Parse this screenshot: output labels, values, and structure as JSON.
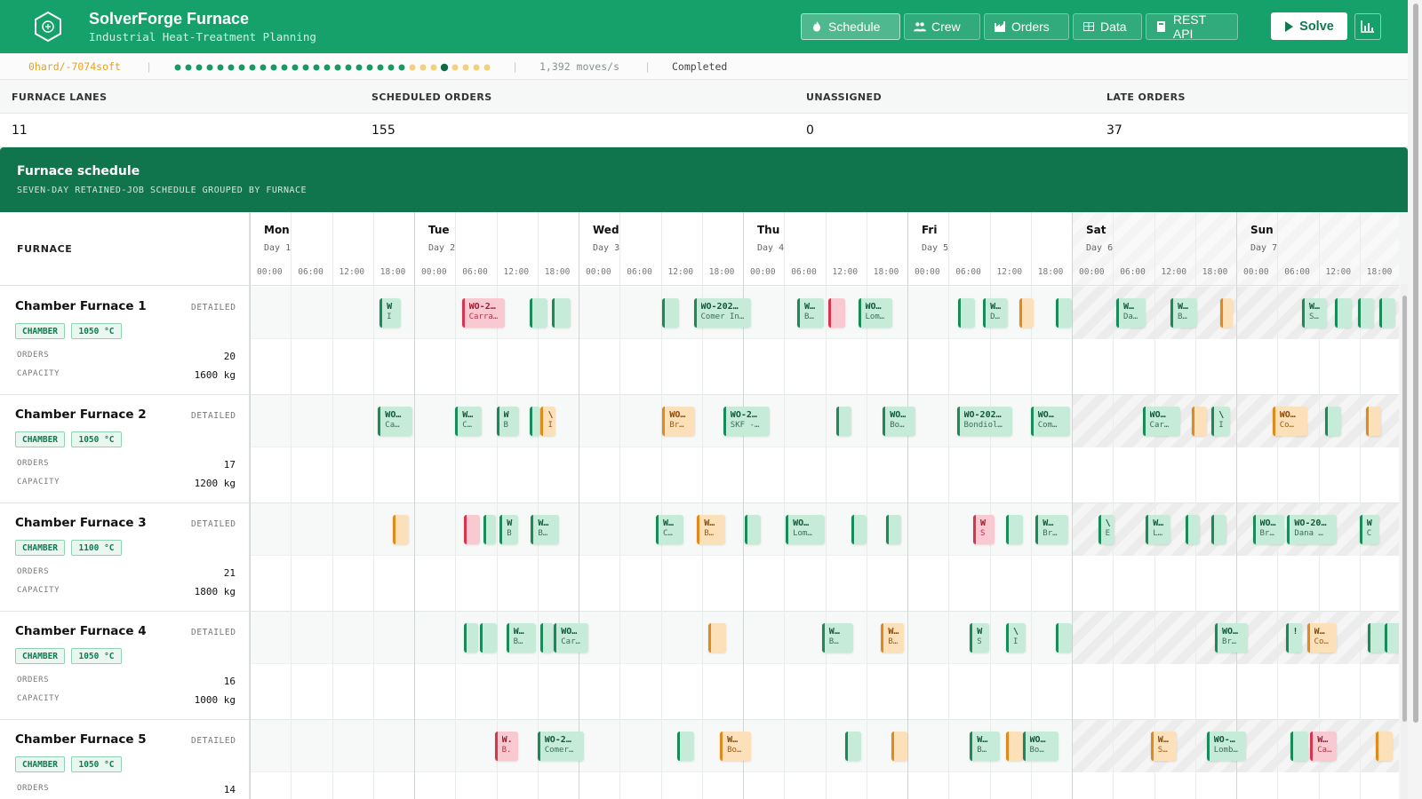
{
  "header": {
    "title": "SolverForge Furnace",
    "subtitle": "Industrial Heat-Treatment Planning",
    "nav": [
      {
        "label": "Schedule",
        "icon": "flame-icon",
        "active": true
      },
      {
        "label": "Crew",
        "icon": "users-icon",
        "active": false
      },
      {
        "label": "Orders",
        "icon": "factory-icon",
        "active": false
      },
      {
        "label": "Data",
        "icon": "table-icon",
        "active": false
      },
      {
        "label": "REST API",
        "icon": "book-icon",
        "active": false
      }
    ],
    "solve_label": "Solve"
  },
  "status": {
    "score": "0hard/-7074soft",
    "progress_dots": {
      "total": 30,
      "filled": 28,
      "highlighted_index": 25
    },
    "speed": "1,392 moves/s",
    "state": "Completed"
  },
  "stats": [
    {
      "label": "FURNACE LANES",
      "value": "11"
    },
    {
      "label": "SCHEDULED ORDERS",
      "value": "155"
    },
    {
      "label": "UNASSIGNED",
      "value": "0"
    },
    {
      "label": "LATE ORDERS",
      "value": "37"
    }
  ],
  "schedule": {
    "title": "Furnace schedule",
    "subtitle": "SEVEN-DAY RETAINED-JOB SCHEDULE GROUPED BY FURNACE",
    "column_label": "FURNACE",
    "days": [
      {
        "name": "Mon",
        "sub": "Day 1"
      },
      {
        "name": "Tue",
        "sub": "Day 2"
      },
      {
        "name": "Wed",
        "sub": "Day 3"
      },
      {
        "name": "Thu",
        "sub": "Day 4"
      },
      {
        "name": "Fri",
        "sub": "Day 5"
      },
      {
        "name": "Sat",
        "sub": "Day 6"
      },
      {
        "name": "Sun",
        "sub": "Day 7"
      }
    ],
    "hours": [
      "00:00",
      "06:00",
      "12:00",
      "18:00"
    ],
    "detail_label": "DETAILED",
    "orders_label": "ORDERS",
    "capacity_label": "CAPACITY",
    "furnaces": [
      {
        "name": "Chamber Furnace 1",
        "type": "CHAMBER",
        "temp": "1050 °C",
        "orders": "20",
        "capacity": "1600 kg",
        "jobs": [
          {
            "start": 0.79,
            "end": 0.92,
            "status": "ok",
            "t1": "W",
            "t2": "I"
          },
          {
            "start": 1.29,
            "end": 1.55,
            "status": "late",
            "t1": "WO-2…",
            "t2": "Carra…"
          },
          {
            "start": 1.7,
            "end": 1.81,
            "status": "ok",
            "t1": "",
            "t2": ""
          },
          {
            "start": 1.84,
            "end": 1.95,
            "status": "ok",
            "t1": "",
            "t2": ""
          },
          {
            "start": 2.51,
            "end": 2.61,
            "status": "ok",
            "t1": "",
            "t2": ""
          },
          {
            "start": 2.7,
            "end": 3.05,
            "status": "ok",
            "t1": "WO-202…",
            "t2": "Comer In…"
          },
          {
            "start": 3.33,
            "end": 3.49,
            "status": "ok",
            "t1": "W…",
            "t2": "B…"
          },
          {
            "start": 3.52,
            "end": 3.62,
            "status": "late",
            "t1": "",
            "t2": ""
          },
          {
            "start": 3.7,
            "end": 3.91,
            "status": "ok",
            "t1": "WO…",
            "t2": "Lom…"
          },
          {
            "start": 4.31,
            "end": 4.41,
            "status": "ok",
            "t1": "",
            "t2": ""
          },
          {
            "start": 4.46,
            "end": 4.61,
            "status": "ok",
            "t1": "W…",
            "t2": "D…"
          },
          {
            "start": 4.68,
            "end": 4.77,
            "status": "warn",
            "t1": "",
            "t2": ""
          },
          {
            "start": 4.9,
            "end": 5.0,
            "status": "ok",
            "t1": "",
            "t2": ""
          },
          {
            "start": 5.27,
            "end": 5.45,
            "status": "ok",
            "t1": "W…",
            "t2": "Da…"
          },
          {
            "start": 5.6,
            "end": 5.76,
            "status": "ok",
            "t1": "W…",
            "t2": "B…"
          },
          {
            "start": 5.9,
            "end": 5.98,
            "status": "warn",
            "t1": "",
            "t2": ""
          },
          {
            "start": 6.4,
            "end": 6.55,
            "status": "ok",
            "t1": "W…",
            "t2": "S…"
          },
          {
            "start": 6.6,
            "end": 6.7,
            "status": "ok",
            "t1": "",
            "t2": ""
          },
          {
            "start": 6.74,
            "end": 6.84,
            "status": "ok",
            "t1": "",
            "t2": ""
          },
          {
            "start": 6.87,
            "end": 6.97,
            "status": "ok",
            "t1": "",
            "t2": ""
          }
        ]
      },
      {
        "name": "Chamber Furnace 2",
        "type": "CHAMBER",
        "temp": "1050 °C",
        "orders": "17",
        "capacity": "1200 kg",
        "jobs": [
          {
            "start": 0.78,
            "end": 0.99,
            "status": "ok",
            "t1": "WO…",
            "t2": "Ca…"
          },
          {
            "start": 1.25,
            "end": 1.41,
            "status": "ok",
            "t1": "W…",
            "t2": "C…"
          },
          {
            "start": 1.5,
            "end": 1.64,
            "status": "ok",
            "t1": "W",
            "t2": "B"
          },
          {
            "start": 1.7,
            "end": 1.77,
            "status": "ok",
            "t1": "",
            "t2": ""
          },
          {
            "start": 1.77,
            "end": 1.86,
            "status": "warn",
            "t1": "\\",
            "t2": "I"
          },
          {
            "start": 2.51,
            "end": 2.71,
            "status": "warn",
            "t1": "WO…",
            "t2": "Br…"
          },
          {
            "start": 2.88,
            "end": 3.16,
            "status": "ok",
            "t1": "WO-2…",
            "t2": "SKF -…"
          },
          {
            "start": 3.57,
            "end": 3.66,
            "status": "ok",
            "t1": "",
            "t2": ""
          },
          {
            "start": 3.85,
            "end": 4.05,
            "status": "ok",
            "t1": "WO…",
            "t2": "Bo…"
          },
          {
            "start": 4.3,
            "end": 4.64,
            "status": "ok",
            "t1": "WO-202…",
            "t2": "Bondiol…"
          },
          {
            "start": 4.75,
            "end": 4.99,
            "status": "ok",
            "t1": "WO…",
            "t2": "Com…"
          },
          {
            "start": 5.43,
            "end": 5.66,
            "status": "ok",
            "t1": "WO…",
            "t2": "Car…"
          },
          {
            "start": 5.73,
            "end": 5.82,
            "status": "warn",
            "t1": "",
            "t2": ""
          },
          {
            "start": 5.85,
            "end": 5.96,
            "status": "ok",
            "t1": "\\",
            "t2": "I"
          },
          {
            "start": 6.22,
            "end": 6.43,
            "status": "warn",
            "t1": "WO…",
            "t2": "Co…"
          },
          {
            "start": 6.54,
            "end": 6.64,
            "status": "ok",
            "t1": "",
            "t2": ""
          },
          {
            "start": 6.79,
            "end": 6.88,
            "status": "warn",
            "t1": "",
            "t2": ""
          }
        ]
      },
      {
        "name": "Chamber Furnace 3",
        "type": "CHAMBER",
        "temp": "1100 °C",
        "orders": "21",
        "capacity": "1800 kg",
        "jobs": [
          {
            "start": 0.87,
            "end": 0.97,
            "status": "warn",
            "t1": "",
            "t2": ""
          },
          {
            "start": 1.3,
            "end": 1.4,
            "status": "late",
            "t1": "",
            "t2": ""
          },
          {
            "start": 1.42,
            "end": 1.5,
            "status": "ok",
            "t1": "",
            "t2": ""
          },
          {
            "start": 1.52,
            "end": 1.63,
            "status": "ok",
            "t1": "W",
            "t2": "B"
          },
          {
            "start": 1.71,
            "end": 1.88,
            "status": "ok",
            "t1": "W…",
            "t2": "B…"
          },
          {
            "start": 2.47,
            "end": 2.64,
            "status": "ok",
            "t1": "W…",
            "t2": "C…"
          },
          {
            "start": 2.72,
            "end": 2.89,
            "status": "warn",
            "t1": "W…",
            "t2": "B…"
          },
          {
            "start": 3.01,
            "end": 3.11,
            "status": "ok",
            "t1": "",
            "t2": ""
          },
          {
            "start": 3.26,
            "end": 3.5,
            "status": "ok",
            "t1": "WO…",
            "t2": "Lom…"
          },
          {
            "start": 3.66,
            "end": 3.75,
            "status": "ok",
            "t1": "",
            "t2": ""
          },
          {
            "start": 3.87,
            "end": 3.96,
            "status": "ok",
            "t1": "",
            "t2": ""
          },
          {
            "start": 4.4,
            "end": 4.53,
            "status": "late",
            "t1": "W",
            "t2": "S"
          },
          {
            "start": 4.6,
            "end": 4.7,
            "status": "ok",
            "t1": "",
            "t2": ""
          },
          {
            "start": 4.78,
            "end": 4.98,
            "status": "ok",
            "t1": "W…",
            "t2": "Br…"
          },
          {
            "start": 5.16,
            "end": 5.26,
            "status": "ok",
            "t1": "\\",
            "t2": "E"
          },
          {
            "start": 5.45,
            "end": 5.6,
            "status": "ok",
            "t1": "W…",
            "t2": "L…"
          },
          {
            "start": 5.69,
            "end": 5.78,
            "status": "ok",
            "t1": "",
            "t2": ""
          },
          {
            "start": 5.85,
            "end": 5.94,
            "status": "ok",
            "t1": "",
            "t2": ""
          },
          {
            "start": 6.1,
            "end": 6.29,
            "status": "ok",
            "t1": "WO…",
            "t2": "Br…"
          },
          {
            "start": 6.31,
            "end": 6.61,
            "status": "ok",
            "t1": "WO-20…",
            "t2": "Dana …"
          },
          {
            "start": 6.75,
            "end": 6.87,
            "status": "ok",
            "t1": "W",
            "t2": "C"
          }
        ]
      },
      {
        "name": "Chamber Furnace 4",
        "type": "CHAMBER",
        "temp": "1050 °C",
        "orders": "16",
        "capacity": "1000 kg",
        "jobs": [
          {
            "start": 1.3,
            "end": 1.39,
            "status": "ok",
            "t1": "",
            "t2": ""
          },
          {
            "start": 1.4,
            "end": 1.5,
            "status": "ok",
            "t1": "",
            "t2": ""
          },
          {
            "start": 1.56,
            "end": 1.74,
            "status": "ok",
            "t1": "W…",
            "t2": "B…"
          },
          {
            "start": 1.77,
            "end": 1.85,
            "status": "ok",
            "t1": "",
            "t2": ""
          },
          {
            "start": 1.85,
            "end": 2.06,
            "status": "ok",
            "t1": "WO…",
            "t2": "Car…"
          },
          {
            "start": 2.79,
            "end": 2.9,
            "status": "warn",
            "t1": "",
            "t2": ""
          },
          {
            "start": 3.48,
            "end": 3.67,
            "status": "ok",
            "t1": "W…",
            "t2": "B…"
          },
          {
            "start": 3.84,
            "end": 3.98,
            "status": "warn",
            "t1": "W…",
            "t2": "B…"
          },
          {
            "start": 4.38,
            "end": 4.5,
            "status": "ok",
            "t1": "W",
            "t2": "S"
          },
          {
            "start": 4.6,
            "end": 4.72,
            "status": "ok",
            "t1": "\\",
            "t2": "I"
          },
          {
            "start": 4.9,
            "end": 5.0,
            "status": "ok",
            "t1": "",
            "t2": ""
          },
          {
            "start": 5.87,
            "end": 6.07,
            "status": "ok",
            "t1": "WO…",
            "t2": "Br…"
          },
          {
            "start": 6.3,
            "end": 6.4,
            "status": "ok",
            "t1": "!",
            "t2": ""
          },
          {
            "start": 6.43,
            "end": 6.61,
            "status": "warn",
            "t1": "W…",
            "t2": "Co…"
          },
          {
            "start": 6.8,
            "end": 6.9,
            "status": "ok",
            "t1": "",
            "t2": ""
          },
          {
            "start": 6.9,
            "end": 7.0,
            "status": "ok",
            "t1": "",
            "t2": ""
          }
        ]
      },
      {
        "name": "Chamber Furnace 5",
        "type": "CHAMBER",
        "temp": "1050 °C",
        "orders": "14",
        "capacity": "",
        "jobs": [
          {
            "start": 1.49,
            "end": 1.63,
            "status": "late",
            "t1": "W.",
            "t2": "B."
          },
          {
            "start": 1.75,
            "end": 2.03,
            "status": "ok",
            "t1": "WO-2…",
            "t2": "Comer…"
          },
          {
            "start": 2.6,
            "end": 2.7,
            "status": "ok",
            "t1": "",
            "t2": ""
          },
          {
            "start": 2.86,
            "end": 3.05,
            "status": "warn",
            "t1": "W…",
            "t2": "Bo…"
          },
          {
            "start": 3.62,
            "end": 3.72,
            "status": "ok",
            "t1": "",
            "t2": ""
          },
          {
            "start": 3.9,
            "end": 4.0,
            "status": "warn",
            "t1": "",
            "t2": ""
          },
          {
            "start": 4.38,
            "end": 4.56,
            "status": "ok",
            "t1": "W…",
            "t2": "B…"
          },
          {
            "start": 4.6,
            "end": 4.7,
            "status": "warn",
            "t1": "",
            "t2": ""
          },
          {
            "start": 4.7,
            "end": 4.92,
            "status": "ok",
            "t1": "WO…",
            "t2": "Bo…"
          },
          {
            "start": 5.48,
            "end": 5.64,
            "status": "warn",
            "t1": "W…",
            "t2": "S…"
          },
          {
            "start": 5.82,
            "end": 6.06,
            "status": "ok",
            "t1": "WO-…",
            "t2": "Lomb…"
          },
          {
            "start": 6.33,
            "end": 6.44,
            "status": "ok",
            "t1": "",
            "t2": ""
          },
          {
            "start": 6.45,
            "end": 6.61,
            "status": "late",
            "t1": "W…",
            "t2": "Ca…"
          },
          {
            "start": 6.85,
            "end": 6.95,
            "status": "warn",
            "t1": "",
            "t2": ""
          }
        ]
      }
    ]
  },
  "colors": {
    "accent": "#16a06a",
    "schedule_header": "#10744c",
    "ok": "#c6ebd9",
    "warn": "#fbe0b9",
    "late": "#f8c9d0",
    "score": "#e6a21f"
  }
}
